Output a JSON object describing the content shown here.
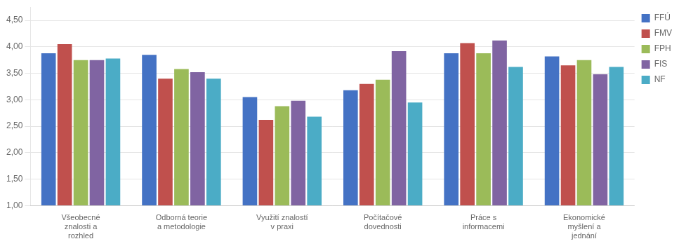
{
  "chart_data": {
    "type": "bar",
    "categories": [
      "Všeobecné\nznalosti a\nrozhled",
      "Odborná teorie\na metodologie",
      "Využití znalostí\nv praxi",
      "Počítačové\ndovednosti",
      "Práce s\ninformacemi",
      "Ekonomické\nmyšlení a\njednání"
    ],
    "series": [
      {
        "name": "FFÚ",
        "color": "#4472C4",
        "values": [
          3.88,
          3.85,
          3.05,
          3.18,
          3.88,
          3.82
        ]
      },
      {
        "name": "FMV",
        "color": "#C0504D",
        "values": [
          4.05,
          3.4,
          2.62,
          3.3,
          4.07,
          3.65
        ]
      },
      {
        "name": "FPH",
        "color": "#9BBB59",
        "values": [
          3.75,
          3.58,
          2.88,
          3.38,
          3.88,
          3.75
        ]
      },
      {
        "name": "FIS",
        "color": "#8064A2",
        "values": [
          3.75,
          3.52,
          2.98,
          3.92,
          4.12,
          3.48
        ]
      },
      {
        "name": "NF",
        "color": "#4BACC6",
        "values": [
          3.78,
          3.4,
          2.68,
          2.95,
          3.62,
          3.62
        ]
      }
    ],
    "ylim": [
      1.0,
      4.75
    ],
    "yticks": [
      {
        "value": 1.0,
        "label": "1,00"
      },
      {
        "value": 1.5,
        "label": "1,50"
      },
      {
        "value": 2.0,
        "label": "2,00"
      },
      {
        "value": 2.5,
        "label": "2,50"
      },
      {
        "value": 3.0,
        "label": "3,00"
      },
      {
        "value": 3.5,
        "label": "3,50"
      },
      {
        "value": 4.0,
        "label": "4,00"
      },
      {
        "value": 4.5,
        "label": "4,50"
      }
    ],
    "grid": true,
    "legend": "right"
  }
}
